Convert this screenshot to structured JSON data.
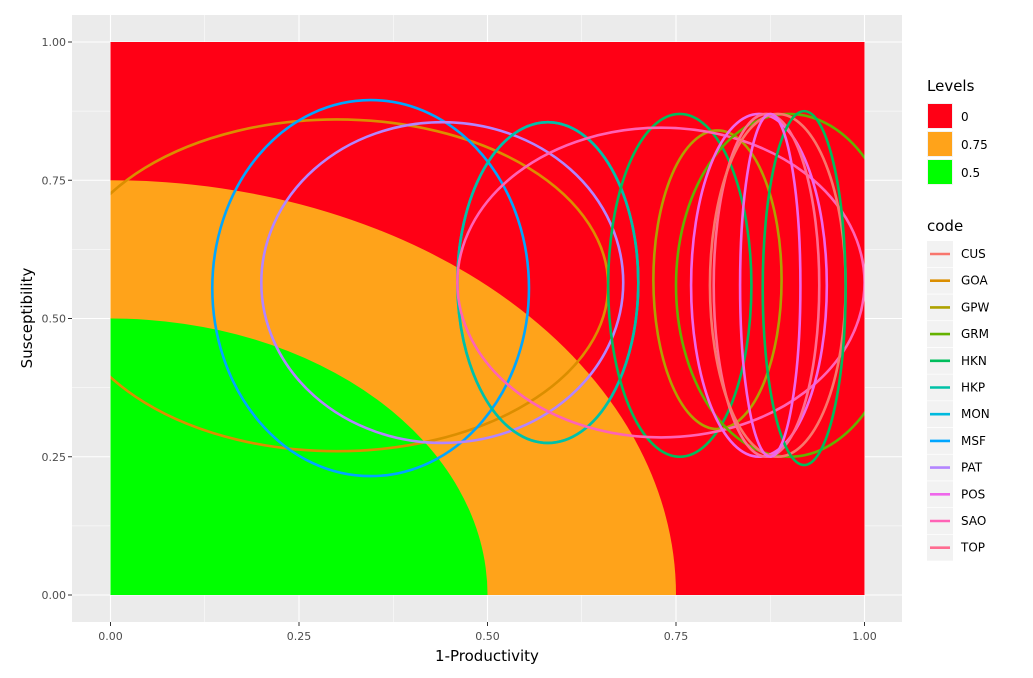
{
  "chart_data": {
    "type": "scatter",
    "title": "",
    "xlabel": "1-Productivity",
    "ylabel": "Susceptibility",
    "xlim": [
      -0.05,
      1.05
    ],
    "ylim": [
      -0.05,
      1.05
    ],
    "x_ticks": [
      "0.00",
      "0.25",
      "0.50",
      "0.75",
      "1.00"
    ],
    "y_ticks": [
      "0.00",
      "0.25",
      "0.50",
      "0.75",
      "1.00"
    ],
    "grid": true,
    "background_colors": {
      "panel": "#ebebeb",
      "grid": "#ffffff"
    },
    "levels": {
      "title": "Levels",
      "items": [
        {
          "label": "0",
          "color": "#ff0015",
          "radius": null
        },
        {
          "label": "0.75",
          "color": "#ffa31a",
          "radius": 0.75
        },
        {
          "label": "0.5",
          "color": "#00ff00",
          "radius": 0.5
        }
      ]
    },
    "code_legend": {
      "title": "code",
      "items": [
        {
          "label": "CUS",
          "color": "#f8766d"
        },
        {
          "label": "GOA",
          "color": "#db8e00"
        },
        {
          "label": "GPW",
          "color": "#aea200"
        },
        {
          "label": "GRM",
          "color": "#64b200"
        },
        {
          "label": "HKN",
          "color": "#00bd5c"
        },
        {
          "label": "HKP",
          "color": "#00c1a7"
        },
        {
          "label": "MON",
          "color": "#00bade"
        },
        {
          "label": "MSF",
          "color": "#00a6ff"
        },
        {
          "label": "PAT",
          "color": "#b385ff"
        },
        {
          "label": "POS",
          "color": "#ef67eb"
        },
        {
          "label": "SAO",
          "color": "#ff63b6"
        },
        {
          "label": "TOP",
          "color": "#ff6c91"
        }
      ]
    },
    "ellipses": [
      {
        "code": "GOA",
        "cx": 0.3,
        "cy": 0.56,
        "rx": 0.36,
        "ry": 0.3
      },
      {
        "code": "MSF",
        "cx": 0.345,
        "cy": 0.555,
        "rx": 0.21,
        "ry": 0.34
      },
      {
        "code": "PAT",
        "cx": 0.44,
        "cy": 0.565,
        "rx": 0.24,
        "ry": 0.29
      },
      {
        "code": "MON",
        "cx": 0.58,
        "cy": 0.565,
        "rx": 0.12,
        "ry": 0.29
      },
      {
        "code": "HKP",
        "cx": 0.58,
        "cy": 0.565,
        "rx": 0.12,
        "ry": 0.29
      },
      {
        "code": "HKN",
        "cx": 0.755,
        "cy": 0.56,
        "rx": 0.095,
        "ry": 0.31
      },
      {
        "code": "GPW",
        "cx": 0.805,
        "cy": 0.57,
        "rx": 0.085,
        "ry": 0.27
      },
      {
        "code": "SAO",
        "cx": 0.73,
        "cy": 0.565,
        "rx": 0.27,
        "ry": 0.28
      },
      {
        "code": "GRM",
        "cx": 0.9,
        "cy": 0.56,
        "rx": 0.15,
        "ry": 0.31
      },
      {
        "code": "POS",
        "cx": 0.86,
        "cy": 0.56,
        "rx": 0.09,
        "ry": 0.31
      },
      {
        "code": "TOP",
        "cx": 0.87,
        "cy": 0.56,
        "rx": 0.07,
        "ry": 0.31
      },
      {
        "code": "CUS",
        "cx": 0.885,
        "cy": 0.56,
        "rx": 0.09,
        "ry": 0.31
      },
      {
        "code": "HKN",
        "cx": 0.92,
        "cy": 0.555,
        "rx": 0.055,
        "ry": 0.32
      },
      {
        "code": "POS",
        "cx": 0.875,
        "cy": 0.56,
        "rx": 0.04,
        "ry": 0.31
      }
    ]
  }
}
